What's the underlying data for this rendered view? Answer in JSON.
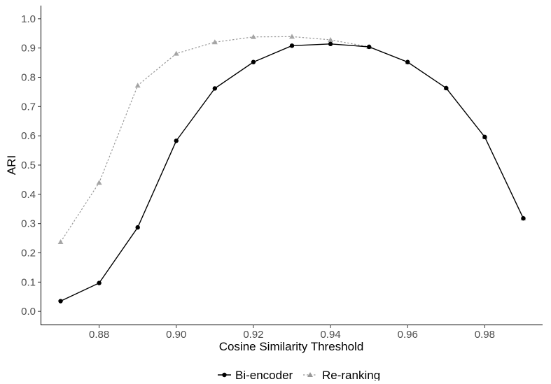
{
  "chart_data": {
    "type": "line",
    "xlabel": "Cosine Similarity Threshold",
    "ylabel": "ARI",
    "xlim": [
      0.865,
      0.995
    ],
    "ylim": [
      -0.045,
      1.045
    ],
    "x_ticks": [
      0.88,
      0.9,
      0.92,
      0.94,
      0.96,
      0.98
    ],
    "x_tick_labels": [
      "0.88",
      "0.90",
      "0.92",
      "0.94",
      "0.96",
      "0.98"
    ],
    "y_ticks": [
      0.0,
      0.1,
      0.2,
      0.3,
      0.4,
      0.5,
      0.6,
      0.7,
      0.8,
      0.9,
      1.0
    ],
    "y_tick_labels": [
      "0.0",
      "0.1",
      "0.2",
      "0.3",
      "0.4",
      "0.5",
      "0.6",
      "0.7",
      "0.8",
      "0.9",
      "1.0"
    ],
    "grid": false,
    "legend_position": "bottom",
    "series": [
      {
        "name": "Bi-encoder",
        "color": "#000000",
        "line_style": "solid",
        "marker": "circle",
        "x": [
          0.87,
          0.88,
          0.89,
          0.9,
          0.91,
          0.92,
          0.93,
          0.94,
          0.95,
          0.96,
          0.97,
          0.98,
          0.99
        ],
        "y": [
          0.035,
          0.097,
          0.287,
          0.583,
          0.762,
          0.852,
          0.908,
          0.914,
          0.904,
          0.852,
          0.763,
          0.596,
          0.318
        ]
      },
      {
        "name": "Re-ranking",
        "color": "#999999",
        "line_style": "dotted",
        "marker": "triangle",
        "x": [
          0.87,
          0.88,
          0.89,
          0.9,
          0.91,
          0.92,
          0.93,
          0.94,
          0.95,
          0.96,
          0.97,
          0.98,
          0.99
        ],
        "y": [
          0.237,
          0.44,
          0.772,
          0.881,
          0.92,
          0.938,
          0.939,
          0.928,
          0.904,
          0.852,
          0.763,
          0.596,
          0.318
        ]
      }
    ]
  }
}
